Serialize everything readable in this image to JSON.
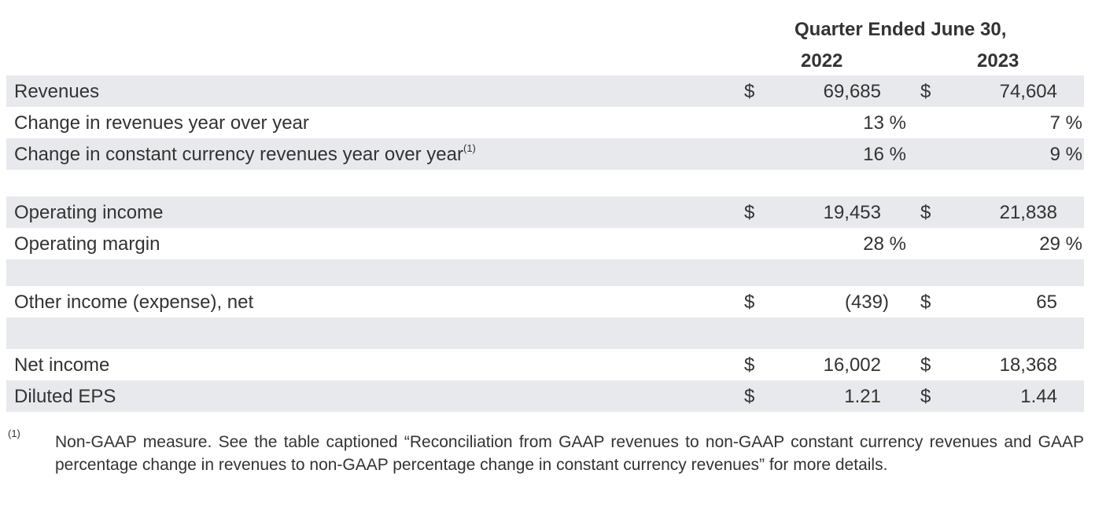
{
  "header": {
    "title": "Quarter Ended June 30,",
    "years": [
      "2022",
      "2023"
    ]
  },
  "rows": [
    {
      "label": "Revenues",
      "cur": "$",
      "v2022": "69,685",
      "v2023": "74,604"
    },
    {
      "label": "Change in revenues year over year",
      "v2022": "13 %",
      "v2023": "7 %"
    },
    {
      "label": "Change in constant currency revenues year over year",
      "note": "(1)",
      "v2022": "16 %",
      "v2023": "9 %"
    },
    {
      "label": "Operating income",
      "cur": "$",
      "v2022": "19,453",
      "v2023": "21,838"
    },
    {
      "label": "Operating margin",
      "v2022": "28 %",
      "v2023": "29 %"
    },
    {
      "label": "Other income (expense), net",
      "cur": "$",
      "v2022": "(439)",
      "v2023": "65"
    },
    {
      "label": "Net income",
      "cur": "$",
      "v2022": "16,002",
      "v2023": "18,368"
    },
    {
      "label": "Diluted EPS",
      "cur": "$",
      "v2022": "1.21",
      "v2023": "1.44"
    }
  ],
  "footnote": {
    "mark": "(1)",
    "text": "Non-GAAP measure. See the table captioned “Reconciliation from GAAP revenues to non-GAAP constant currency revenues and GAAP percentage change in revenues to non-GAAP percentage change in constant currency revenues” for more details."
  },
  "colors": {
    "row_shade": "#e8e9ed",
    "text": "#333333"
  }
}
